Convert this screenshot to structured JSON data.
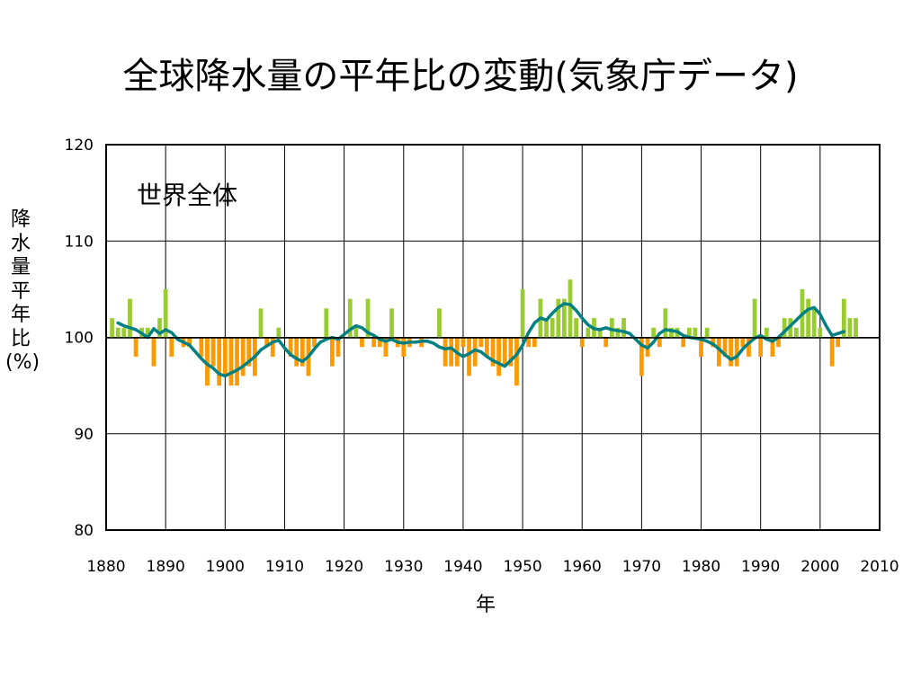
{
  "title": "全球降水量の平年比の変動(気象庁データ)",
  "colors": {
    "positive": "#99cc33",
    "negative": "#ff9900",
    "smooth": "#008080",
    "grid": "#000000"
  },
  "chart_data": {
    "type": "bar",
    "title": "全球降水量の平年比の変動(気象庁データ)",
    "panel_label": "世界全体",
    "xlabel": "年",
    "ylabel": "降水量平年比(%)",
    "xlim": [
      1880,
      2010
    ],
    "ylim": [
      80,
      120
    ],
    "baseline": 100,
    "x_ticks": [
      1880,
      1890,
      1900,
      1910,
      1920,
      1930,
      1940,
      1950,
      1960,
      1970,
      1980,
      1990,
      2000,
      2010
    ],
    "y_ticks": [
      80,
      90,
      100,
      110,
      120
    ],
    "grid": true,
    "series": [
      {
        "type": "bar",
        "x": [
          1881,
          1882,
          1883,
          1884,
          1885,
          1886,
          1887,
          1888,
          1889,
          1890,
          1891,
          1892,
          1893,
          1894,
          1895,
          1896,
          1897,
          1898,
          1899,
          1900,
          1901,
          1902,
          1903,
          1904,
          1905,
          1906,
          1907,
          1908,
          1909,
          1910,
          1911,
          1912,
          1913,
          1914,
          1915,
          1916,
          1917,
          1918,
          1919,
          1920,
          1921,
          1922,
          1923,
          1924,
          1925,
          1926,
          1927,
          1928,
          1929,
          1930,
          1931,
          1932,
          1933,
          1934,
          1935,
          1936,
          1937,
          1938,
          1939,
          1940,
          1941,
          1942,
          1943,
          1944,
          1945,
          1946,
          1947,
          1948,
          1949,
          1950,
          1951,
          1952,
          1953,
          1954,
          1955,
          1956,
          1957,
          1958,
          1959,
          1960,
          1961,
          1962,
          1963,
          1964,
          1965,
          1966,
          1967,
          1968,
          1969,
          1970,
          1971,
          1972,
          1973,
          1974,
          1975,
          1976,
          1977,
          1978,
          1979,
          1980,
          1981,
          1982,
          1983,
          1984,
          1985,
          1986,
          1987,
          1988,
          1989,
          1990,
          1991,
          1992,
          1993,
          1994,
          1995,
          1996,
          1997,
          1998,
          1999,
          2000,
          2001,
          2002,
          2003,
          2004,
          2005,
          2006
        ],
        "values": [
          102,
          101,
          101,
          104,
          98,
          101,
          101,
          97,
          102,
          105,
          98,
          100,
          99,
          99,
          100,
          98,
          95,
          97,
          95,
          96,
          95,
          95,
          96,
          97,
          96,
          103,
          99,
          98,
          101,
          100,
          98,
          97,
          97,
          96,
          99,
          100,
          103,
          97,
          98,
          100,
          104,
          101,
          99,
          104,
          99,
          99,
          98,
          103,
          99,
          98,
          99,
          100,
          99,
          100,
          100,
          103,
          97,
          97,
          97,
          99,
          96,
          97,
          99,
          98,
          97,
          96,
          97,
          97,
          95,
          105,
          99,
          99,
          104,
          102,
          102,
          104,
          104,
          106,
          102,
          99,
          101,
          102,
          101,
          99,
          102,
          101,
          102,
          100,
          100,
          96,
          98,
          101,
          99,
          103,
          101,
          101,
          99,
          101,
          101,
          98,
          101,
          99,
          97,
          98,
          97,
          97,
          99,
          98,
          104,
          98,
          101,
          98,
          99,
          102,
          102,
          101,
          105,
          104,
          103,
          101,
          100,
          97,
          99,
          104,
          102,
          102
        ]
      },
      {
        "type": "line",
        "x": [
          1882,
          1883,
          1884,
          1885,
          1886,
          1887,
          1888,
          1889,
          1890,
          1891,
          1892,
          1893,
          1894,
          1895,
          1896,
          1897,
          1898,
          1899,
          1900,
          1901,
          1902,
          1903,
          1904,
          1905,
          1906,
          1907,
          1908,
          1909,
          1910,
          1911,
          1912,
          1913,
          1914,
          1915,
          1916,
          1917,
          1918,
          1919,
          1920,
          1921,
          1922,
          1923,
          1924,
          1925,
          1926,
          1927,
          1928,
          1929,
          1930,
          1931,
          1932,
          1933,
          1934,
          1935,
          1936,
          1937,
          1938,
          1939,
          1940,
          1941,
          1942,
          1943,
          1944,
          1945,
          1946,
          1947,
          1948,
          1949,
          1950,
          1951,
          1952,
          1953,
          1954,
          1955,
          1956,
          1957,
          1958,
          1959,
          1960,
          1961,
          1962,
          1963,
          1964,
          1965,
          1966,
          1967,
          1968,
          1969,
          1970,
          1971,
          1972,
          1973,
          1974,
          1975,
          1976,
          1977,
          1978,
          1979,
          1980,
          1981,
          1982,
          1983,
          1984,
          1985,
          1986,
          1987,
          1988,
          1989,
          1990,
          1991,
          1992,
          1993,
          1994,
          1995,
          1996,
          1997,
          1998,
          1999,
          2000,
          2001,
          2002,
          2003,
          2004
        ],
        "values": [
          101.5,
          101.2,
          101.0,
          100.8,
          100.4,
          100.0,
          100.9,
          100.4,
          100.8,
          100.5,
          99.8,
          99.5,
          99.2,
          98.5,
          97.8,
          97.2,
          96.8,
          96.2,
          96.0,
          96.3,
          96.6,
          97.0,
          97.5,
          98.0,
          98.7,
          99.1,
          99.5,
          99.7,
          98.9,
          98.2,
          97.8,
          97.5,
          98.0,
          98.8,
          99.5,
          99.8,
          100.0,
          99.8,
          100.3,
          100.8,
          101.2,
          101.0,
          100.5,
          100.2,
          99.8,
          99.6,
          99.8,
          99.5,
          99.4,
          99.5,
          99.5,
          99.6,
          99.6,
          99.4,
          99.0,
          98.8,
          98.9,
          98.4,
          98.0,
          98.3,
          98.7,
          98.5,
          98.0,
          97.6,
          97.3,
          97.0,
          97.6,
          98.2,
          99.2,
          100.5,
          101.5,
          102.0,
          101.8,
          102.5,
          103.1,
          103.5,
          103.4,
          102.8,
          102.0,
          101.3,
          100.9,
          100.8,
          101.0,
          100.8,
          100.7,
          100.6,
          100.4,
          99.8,
          99.2,
          98.9,
          99.5,
          100.4,
          100.8,
          100.7,
          100.6,
          100.2,
          100.0,
          99.9,
          99.8,
          99.6,
          99.3,
          98.8,
          98.2,
          97.7,
          98.0,
          98.8,
          99.4,
          99.9,
          100.2,
          99.8,
          99.6,
          100.0,
          100.6,
          101.2,
          101.8,
          102.4,
          102.9,
          103.1,
          102.4,
          101.2,
          100.2,
          100.4,
          100.6
        ]
      }
    ]
  }
}
